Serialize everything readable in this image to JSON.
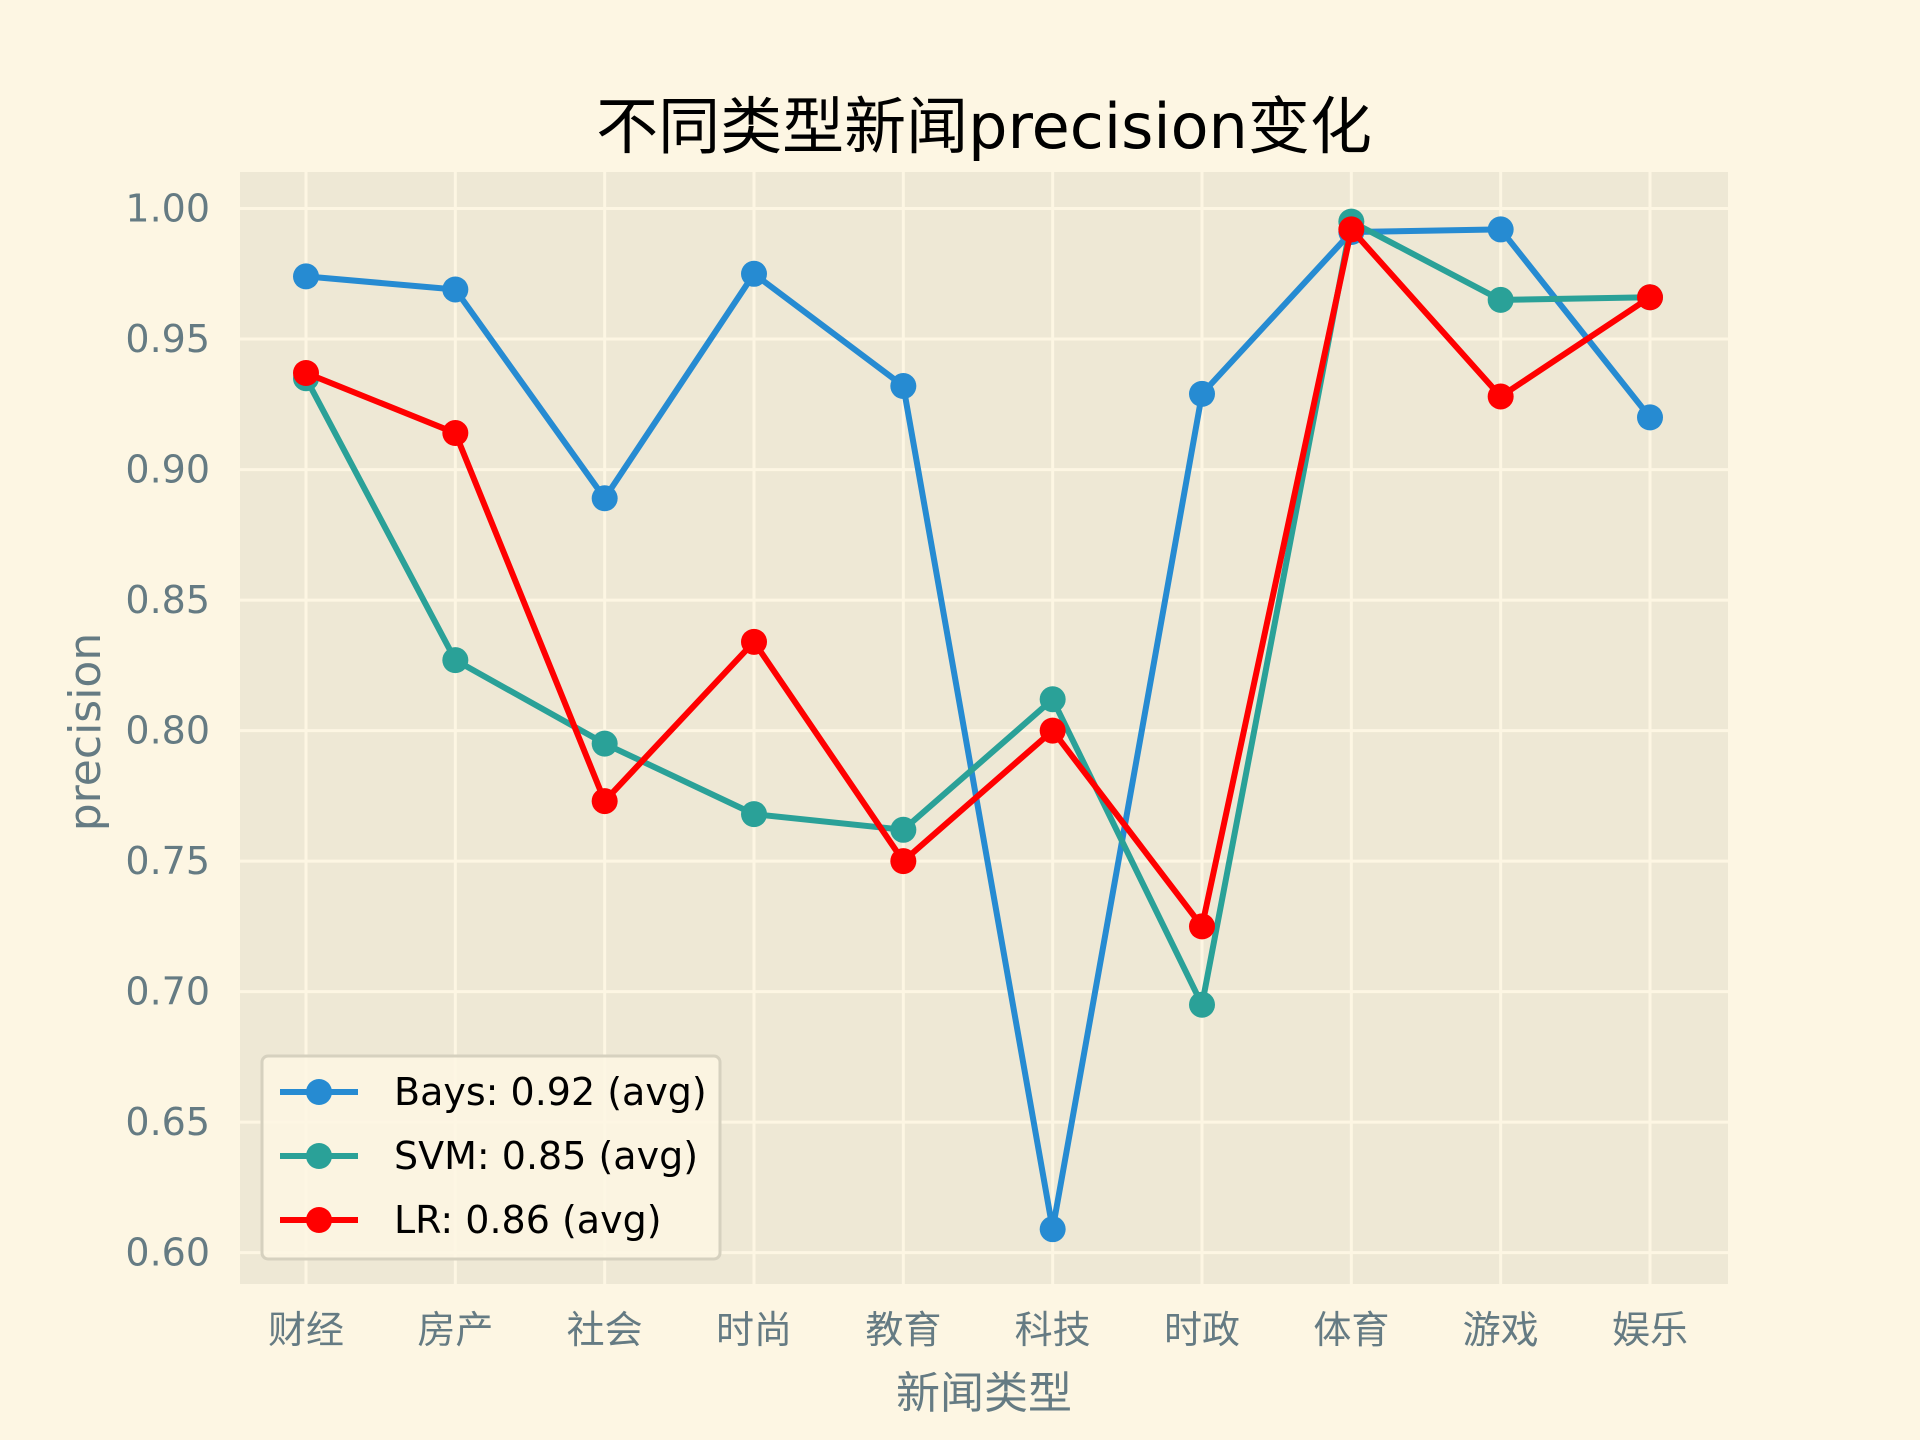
{
  "chart_data": {
    "type": "line",
    "title": "不同类型新闻precision变化",
    "xlabel": "新闻类型",
    "ylabel": "precision",
    "categories": [
      "财经",
      "房产",
      "社会",
      "时尚",
      "教育",
      "科技",
      "时政",
      "体育",
      "游戏",
      "娱乐"
    ],
    "ylim": [
      0.588,
      1.014
    ],
    "yticks": [
      "0.60",
      "0.65",
      "0.70",
      "0.75",
      "0.80",
      "0.85",
      "0.90",
      "0.95",
      "1.00"
    ],
    "grid": true,
    "legend_position": "lower-left",
    "series": [
      {
        "name": "Bays: 0.92 (avg)",
        "color": "#268bd2",
        "values": [
          0.974,
          0.969,
          0.889,
          0.975,
          0.932,
          0.609,
          0.929,
          0.991,
          0.992,
          0.92
        ]
      },
      {
        "name": "SVM: 0.85 (avg)",
        "color": "#2aa198",
        "values": [
          0.935,
          0.827,
          0.795,
          0.768,
          0.762,
          0.812,
          0.695,
          0.995,
          0.965,
          0.966
        ]
      },
      {
        "name": "LR: 0.86 (avg)",
        "color": "#ff0000",
        "values": [
          0.937,
          0.914,
          0.773,
          0.834,
          0.75,
          0.8,
          0.725,
          0.992,
          0.928,
          0.966
        ]
      }
    ],
    "colors": {
      "figure_bg": "#fdf6e3",
      "plot_bg": "#eee8d5",
      "grid": "#fdf6e3",
      "text": "#657b83"
    }
  }
}
